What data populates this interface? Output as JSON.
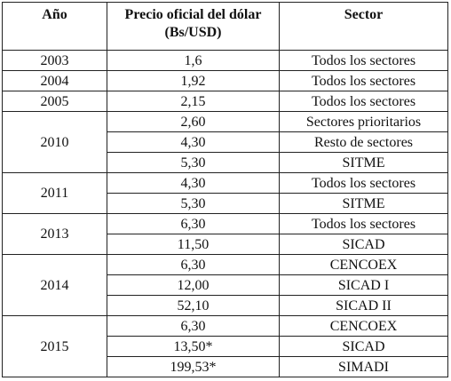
{
  "table": {
    "headers": [
      "Año",
      "Precio oficial del dólar (Bs/USD)",
      "Sector"
    ],
    "groups": [
      {
        "year": "2003",
        "rows": [
          {
            "price": "1,6",
            "sector": "Todos los sectores"
          }
        ]
      },
      {
        "year": "2004",
        "rows": [
          {
            "price": "1,92",
            "sector": "Todos los sectores"
          }
        ]
      },
      {
        "year": "2005",
        "rows": [
          {
            "price": "2,15",
            "sector": "Todos los sectores"
          }
        ]
      },
      {
        "year": "2010",
        "rows": [
          {
            "price": "2,60",
            "sector": "Sectores prioritarios"
          },
          {
            "price": "4,30",
            "sector": "Resto de sectores"
          },
          {
            "price": "5,30",
            "sector": "SITME"
          }
        ]
      },
      {
        "year": "2011",
        "rows": [
          {
            "price": "4,30",
            "sector": "Todos los sectores"
          },
          {
            "price": "5,30",
            "sector": "SITME"
          }
        ]
      },
      {
        "year": "2013",
        "rows": [
          {
            "price": "6,30",
            "sector": "Todos los sectores"
          },
          {
            "price": "11,50",
            "sector": "SICAD"
          }
        ]
      },
      {
        "year": "2014",
        "rows": [
          {
            "price": "6,30",
            "sector": "CENCOEX"
          },
          {
            "price": "12,00",
            "sector": "SICAD I"
          },
          {
            "price": "52,10",
            "sector": "SICAD II"
          }
        ]
      },
      {
        "year": "2015",
        "rows": [
          {
            "price": "6,30",
            "sector": "CENCOEX"
          },
          {
            "price": "13,50*",
            "sector": "SICAD"
          },
          {
            "price": "199,53*",
            "sector": "SIMADI"
          }
        ]
      }
    ]
  }
}
